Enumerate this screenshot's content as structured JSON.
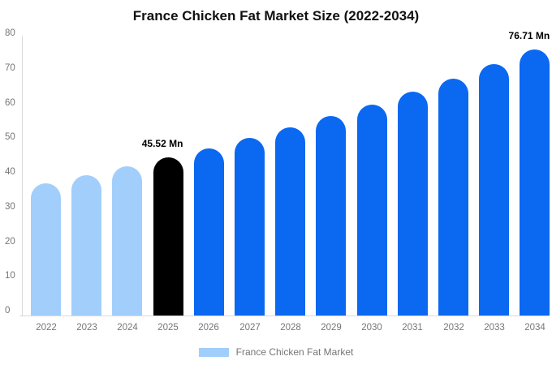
{
  "title": "France Chicken Fat Market Size (2022-2034)",
  "legend": {
    "label": "France Chicken Fat Market",
    "swatch_color": "#A1CEFB"
  },
  "colors": {
    "past": "#A1CEFB",
    "current": "#000000",
    "forecast": "#0B68F1",
    "axis_line": "#D9D9D9",
    "tick_text": "#757575",
    "title_text": "#111111",
    "background": "#FFFFFF"
  },
  "chart_data": {
    "type": "bar",
    "title": "France Chicken Fat Market Size (2022-2034)",
    "unit": "Mn",
    "categories": [
      "2022",
      "2023",
      "2024",
      "2025",
      "2026",
      "2027",
      "2028",
      "2029",
      "2030",
      "2031",
      "2032",
      "2033",
      "2034"
    ],
    "values": [
      38.24,
      40.53,
      42.95,
      45.52,
      48.24,
      51.13,
      54.19,
      57.43,
      60.87,
      64.51,
      68.37,
      72.46,
      76.71
    ],
    "styles": [
      "past",
      "past",
      "past",
      "current",
      "forecast",
      "forecast",
      "forecast",
      "forecast",
      "forecast",
      "forecast",
      "forecast",
      "forecast",
      "forecast"
    ],
    "annotations": [
      {
        "index": 3,
        "text": "45.52 Mn"
      },
      {
        "index": 12,
        "text": "76.71 Mn"
      }
    ],
    "xlabel": "",
    "ylabel": "",
    "ylim": [
      0,
      80
    ],
    "yticks": [
      0,
      10,
      20,
      30,
      40,
      50,
      60,
      70,
      80
    ],
    "grid": false,
    "legend_position": "bottom"
  }
}
